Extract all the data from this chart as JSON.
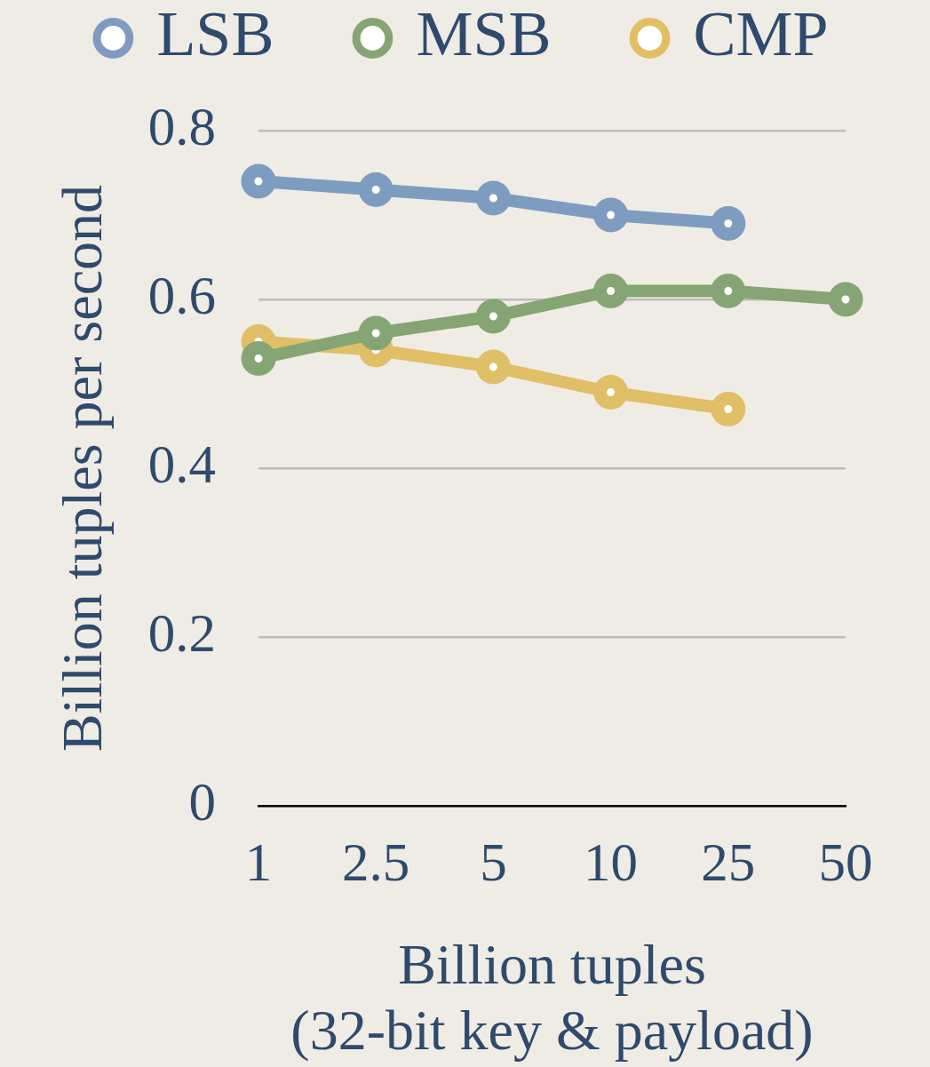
{
  "chart_data": {
    "type": "line",
    "categories": [
      "1",
      "2.5",
      "5",
      "10",
      "25",
      "50"
    ],
    "series": [
      {
        "name": "LSB",
        "color": "#7d9cc0",
        "values": [
          0.74,
          0.73,
          0.72,
          0.7,
          0.69,
          null
        ]
      },
      {
        "name": "MSB",
        "color": "#86a574",
        "values": [
          0.53,
          0.56,
          0.58,
          0.61,
          0.61,
          0.6
        ]
      },
      {
        "name": "CMP",
        "color": "#e1bf66",
        "values": [
          0.55,
          0.54,
          0.52,
          0.49,
          0.47,
          null
        ]
      }
    ],
    "xlabel": "Billion tuples\n(32-bit key & payload)",
    "ylabel": "Billion tuples per second",
    "ylim": [
      0,
      0.8
    ],
    "yticks": [
      0,
      0.2,
      0.4,
      0.6,
      0.8
    ],
    "grid": "y",
    "legend": "top",
    "marker": "circle",
    "line_style": "solid"
  }
}
